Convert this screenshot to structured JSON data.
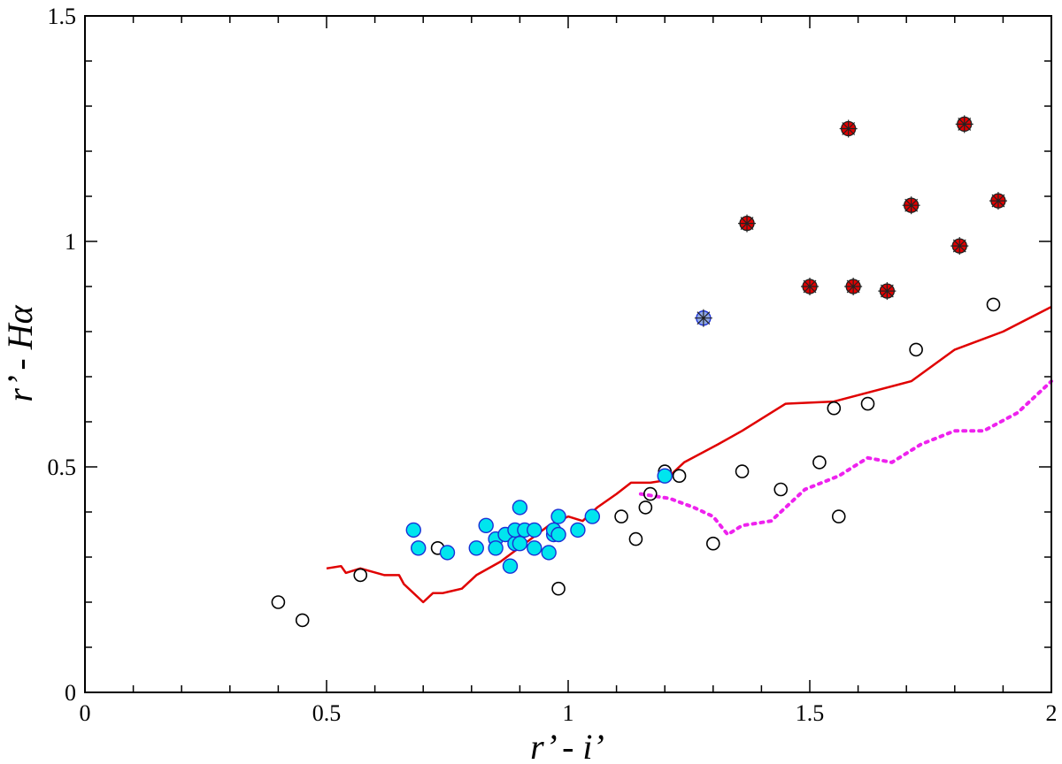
{
  "chart_data": {
    "type": "scatter",
    "title": "",
    "xlabel": "r’ - i’",
    "ylabel": "r’ - Hα",
    "xlim": [
      0,
      2
    ],
    "ylim": [
      0,
      1.5
    ],
    "x_ticks": [
      0,
      0.5,
      1,
      1.5,
      2
    ],
    "x_tick_labels": [
      "0",
      "0.5",
      "1",
      "1.5",
      "2"
    ],
    "y_ticks": [
      0,
      0.5,
      1,
      1.5
    ],
    "y_tick_labels": [
      "0",
      "0.5",
      "1",
      "1.5"
    ],
    "grid": false,
    "legend": "none",
    "colors": {
      "open_circle_stroke": "#000000",
      "cyan_fill": "#00e5ee",
      "cyan_stroke": "#1a2fd6",
      "red_marker": "#e00000",
      "solid_line": "#e00000",
      "dotted_line": "#ee22ee",
      "axis": "#000000"
    },
    "series": [
      {
        "style": "open-circle",
        "points": [
          [
            0.4,
            0.2
          ],
          [
            0.45,
            0.16
          ],
          [
            0.57,
            0.26
          ],
          [
            0.73,
            0.32
          ],
          [
            0.98,
            0.23
          ],
          [
            1.11,
            0.39
          ],
          [
            1.14,
            0.34
          ],
          [
            1.16,
            0.41
          ],
          [
            1.17,
            0.44
          ],
          [
            1.2,
            0.49
          ],
          [
            1.23,
            0.48
          ],
          [
            1.3,
            0.33
          ],
          [
            1.36,
            0.49
          ],
          [
            1.44,
            0.45
          ],
          [
            1.52,
            0.51
          ],
          [
            1.55,
            0.63
          ],
          [
            1.56,
            0.39
          ],
          [
            1.62,
            0.64
          ],
          [
            1.72,
            0.76
          ],
          [
            1.88,
            0.86
          ]
        ]
      },
      {
        "style": "filled-cyan-circle",
        "points": [
          [
            0.68,
            0.36
          ],
          [
            0.69,
            0.32
          ],
          [
            0.75,
            0.31
          ],
          [
            0.81,
            0.32
          ],
          [
            0.83,
            0.37
          ],
          [
            0.85,
            0.34
          ],
          [
            0.85,
            0.32
          ],
          [
            0.87,
            0.35
          ],
          [
            0.88,
            0.28
          ],
          [
            0.89,
            0.33
          ],
          [
            0.89,
            0.36
          ],
          [
            0.9,
            0.41
          ],
          [
            0.9,
            0.33
          ],
          [
            0.91,
            0.36
          ],
          [
            0.93,
            0.32
          ],
          [
            0.93,
            0.36
          ],
          [
            0.96,
            0.31
          ],
          [
            0.97,
            0.35
          ],
          [
            0.97,
            0.36
          ],
          [
            0.98,
            0.35
          ],
          [
            0.98,
            0.39
          ],
          [
            1.02,
            0.36
          ],
          [
            1.05,
            0.39
          ],
          [
            1.2,
            0.48
          ]
        ]
      },
      {
        "style": "red-circle-star",
        "points": [
          [
            1.37,
            1.04
          ],
          [
            1.5,
            0.9
          ],
          [
            1.58,
            1.25
          ],
          [
            1.59,
            0.9
          ],
          [
            1.66,
            0.89
          ],
          [
            1.71,
            1.08
          ],
          [
            1.81,
            0.99
          ],
          [
            1.82,
            1.26
          ],
          [
            1.89,
            1.09
          ]
        ]
      },
      {
        "style": "blue-circle-star",
        "points": [
          [
            1.28,
            0.83
          ]
        ]
      },
      {
        "style": "solid-line",
        "points": [
          [
            0.5,
            0.275
          ],
          [
            0.53,
            0.28
          ],
          [
            0.54,
            0.265
          ],
          [
            0.57,
            0.275
          ],
          [
            0.62,
            0.26
          ],
          [
            0.65,
            0.26
          ],
          [
            0.66,
            0.24
          ],
          [
            0.7,
            0.2
          ],
          [
            0.72,
            0.22
          ],
          [
            0.74,
            0.22
          ],
          [
            0.78,
            0.23
          ],
          [
            0.81,
            0.26
          ],
          [
            0.86,
            0.29
          ],
          [
            0.91,
            0.33
          ],
          [
            0.96,
            0.37
          ],
          [
            1.0,
            0.39
          ],
          [
            1.03,
            0.38
          ],
          [
            1.06,
            0.41
          ],
          [
            1.1,
            0.44
          ],
          [
            1.13,
            0.465
          ],
          [
            1.17,
            0.465
          ],
          [
            1.2,
            0.47
          ],
          [
            1.24,
            0.51
          ],
          [
            1.31,
            0.55
          ],
          [
            1.36,
            0.58
          ],
          [
            1.45,
            0.64
          ],
          [
            1.55,
            0.645
          ],
          [
            1.71,
            0.69
          ],
          [
            1.8,
            0.76
          ],
          [
            1.9,
            0.8
          ],
          [
            2.0,
            0.855
          ]
        ]
      },
      {
        "style": "dotted-line",
        "points": [
          [
            1.15,
            0.44
          ],
          [
            1.21,
            0.43
          ],
          [
            1.26,
            0.41
          ],
          [
            1.3,
            0.39
          ],
          [
            1.33,
            0.35
          ],
          [
            1.36,
            0.37
          ],
          [
            1.42,
            0.38
          ],
          [
            1.49,
            0.45
          ],
          [
            1.56,
            0.48
          ],
          [
            1.62,
            0.52
          ],
          [
            1.67,
            0.51
          ],
          [
            1.73,
            0.55
          ],
          [
            1.8,
            0.58
          ],
          [
            1.86,
            0.58
          ],
          [
            1.93,
            0.62
          ],
          [
            2.0,
            0.69
          ]
        ]
      }
    ]
  }
}
